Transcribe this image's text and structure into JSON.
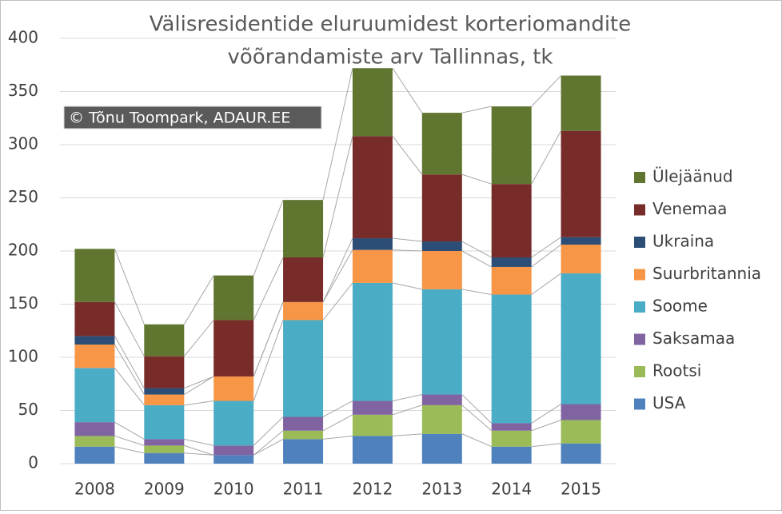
{
  "chart_data": {
    "type": "stacked_bar",
    "title": [
      "Välisresidentide eluruumidest korteriomandite",
      "võõrandamiste arv Tallinnas, tk"
    ],
    "annotation": "© Tõnu Toompark, ADAUR.EE",
    "categories": [
      "2008",
      "2009",
      "2010",
      "2011",
      "2012",
      "2013",
      "2014",
      "2015"
    ],
    "series": [
      {
        "name": "USA",
        "color": "#4f81bd",
        "values": [
          16,
          10,
          8,
          23,
          26,
          28,
          16,
          19
        ]
      },
      {
        "name": "Rootsi",
        "color": "#9bbb59",
        "values": [
          10,
          7,
          0,
          8,
          20,
          27,
          15,
          22
        ]
      },
      {
        "name": "Saksamaa",
        "color": "#8064a2",
        "values": [
          13,
          6,
          9,
          13,
          13,
          10,
          7,
          15
        ]
      },
      {
        "name": "Soome",
        "color": "#4bacc6",
        "values": [
          51,
          32,
          42,
          91,
          111,
          99,
          121,
          123
        ]
      },
      {
        "name": "Suurbritannia",
        "color": "#f79646",
        "values": [
          22,
          10,
          23,
          17,
          31,
          36,
          26,
          27
        ]
      },
      {
        "name": "Ukraina",
        "color": "#2c4d75",
        "values": [
          8,
          6,
          0,
          0,
          11,
          9,
          9,
          7
        ]
      },
      {
        "name": "Venemaa",
        "color": "#772c2a",
        "values": [
          32,
          30,
          53,
          42,
          96,
          63,
          69,
          100
        ]
      },
      {
        "name": "Ülejäänud",
        "color": "#5f7530",
        "values": [
          50,
          30,
          42,
          54,
          64,
          58,
          73,
          52
        ]
      }
    ],
    "ylim": [
      0,
      400
    ],
    "yticks": [
      0,
      50,
      100,
      150,
      200,
      250,
      300,
      350,
      400
    ],
    "grid": true,
    "legend": "right"
  }
}
